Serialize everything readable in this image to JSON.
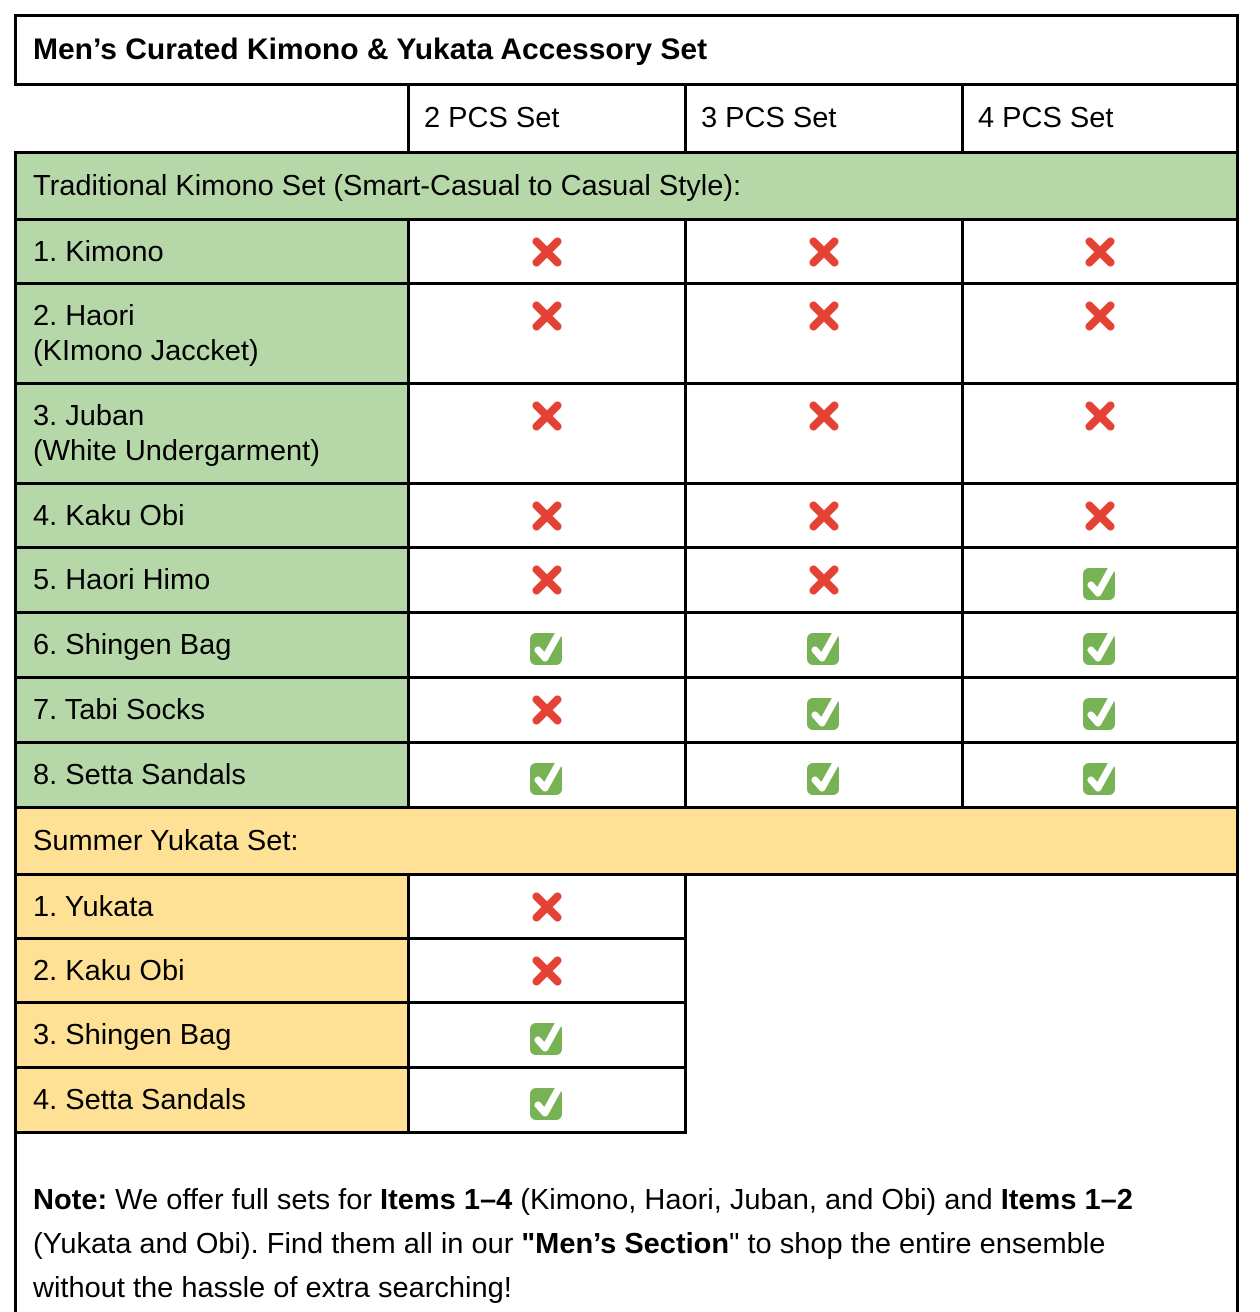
{
  "title": "Men’s Curated Kimono & Yukata Accessory Set",
  "columns": [
    "2 PCS Set",
    "3 PCS Set",
    "4 PCS Set"
  ],
  "colors": {
    "section_green": "#b6d7a8",
    "section_yellow": "#fee195",
    "cross_red": "#e34234",
    "check_green": "#77b255",
    "border": "#000000"
  },
  "sections": [
    {
      "header": "Traditional Kimono Set (Smart-Casual to Casual Style):",
      "theme": "green",
      "rows": [
        {
          "label": "1. Kimono",
          "marks": [
            "x",
            "x",
            "x"
          ]
        },
        {
          "label": "2. Haori\n(KImono Jaccket)",
          "marks": [
            "x",
            "x",
            "x"
          ]
        },
        {
          "label": "3. Juban\n(White Undergarment)",
          "marks": [
            "x",
            "x",
            "x"
          ]
        },
        {
          "label": "4. Kaku Obi",
          "marks": [
            "x",
            "x",
            "x"
          ]
        },
        {
          "label": "5. Haori Himo",
          "marks": [
            "x",
            "x",
            "check"
          ]
        },
        {
          "label": "6. Shingen Bag",
          "marks": [
            "check",
            "check",
            "check"
          ]
        },
        {
          "label": "7. Tabi Socks",
          "marks": [
            "x",
            "check",
            "check"
          ]
        },
        {
          "label": "8. Setta Sandals",
          "marks": [
            "check",
            "check",
            "check"
          ]
        }
      ]
    },
    {
      "header": "Summer Yukata Set:",
      "theme": "yellow",
      "rows": [
        {
          "label": "1. Yukata",
          "marks": [
            "x"
          ]
        },
        {
          "label": "2. Kaku Obi",
          "marks": [
            "x"
          ]
        },
        {
          "label": "3. Shingen Bag",
          "marks": [
            "check"
          ]
        },
        {
          "label": "4. Setta Sandals",
          "marks": [
            "check"
          ]
        }
      ]
    }
  ],
  "legend": {
    "x_meaning": "cross-mark-icon",
    "check_meaning": "check-mark-icon"
  },
  "note": {
    "segments": [
      {
        "text": "Note:",
        "bold": true
      },
      {
        "text": " We offer full sets for ",
        "bold": false
      },
      {
        "text": "Items 1–4",
        "bold": true
      },
      {
        "text": " (Kimono, Haori, Juban, and Obi) and ",
        "bold": false
      },
      {
        "text": "Items 1–2",
        "bold": true
      },
      {
        "text": " (Yukata and Obi). Find them all in our ",
        "bold": false
      },
      {
        "text": "\"Men’s Section",
        "bold": true
      },
      {
        "text": "\" to shop the entire ensemble without the hassle of extra searching!",
        "bold": false
      }
    ]
  }
}
